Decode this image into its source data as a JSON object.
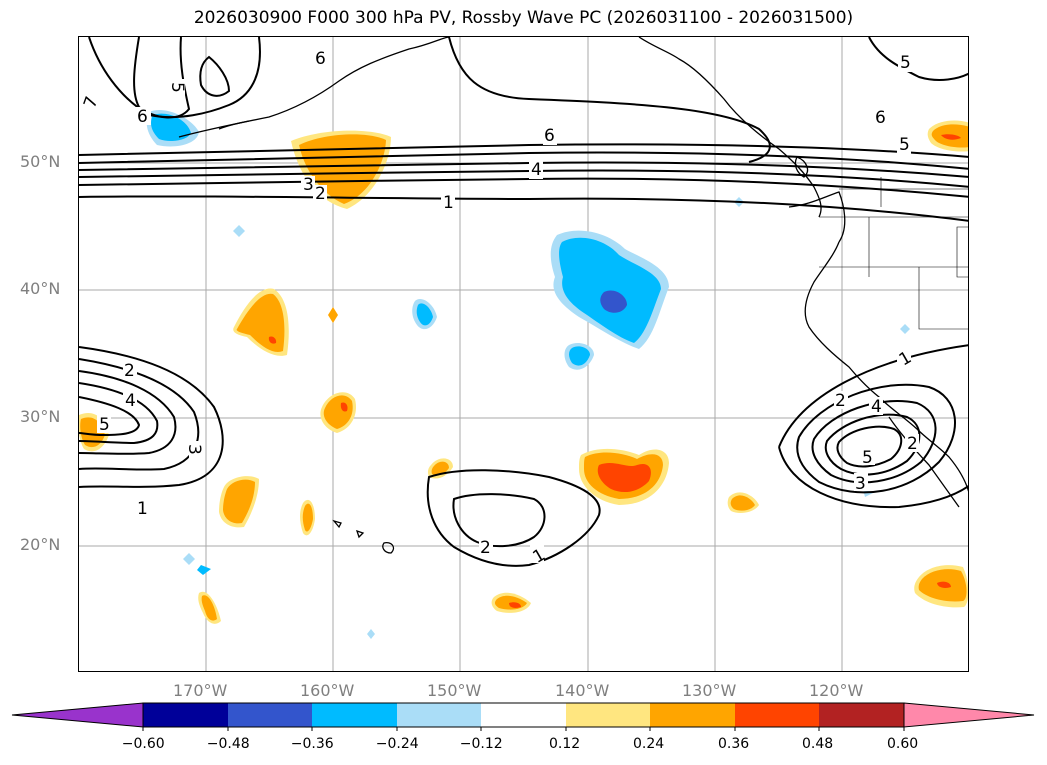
{
  "title": "2026030900 F000 300 hPa PV, Rossby Wave PC (2026031100 - 2026031500)",
  "map": {
    "lat_labels": [
      "50°N",
      "40°N",
      "30°N",
      "20°N"
    ],
    "lon_labels": [
      "170°W",
      "160°W",
      "150°W",
      "140°W",
      "130°W",
      "120°W"
    ]
  },
  "contour_labels": {
    "upper": [
      "7",
      "5",
      "6",
      "6",
      "6",
      "4",
      "3",
      "2",
      "1",
      "5",
      "6",
      "5"
    ],
    "left": [
      "2",
      "4",
      "5",
      "3",
      "1"
    ],
    "center": [
      "2",
      "1"
    ],
    "right": [
      "1",
      "2",
      "4",
      "5",
      "2",
      "3"
    ]
  },
  "colorbar": {
    "ticks": [
      "−0.60",
      "−0.48",
      "−0.36",
      "−0.24",
      "−0.12",
      "0.12",
      "0.24",
      "0.36",
      "0.48",
      "0.60"
    ],
    "colors": [
      "#9933cc",
      "#000099",
      "#3355cc",
      "#00bbff",
      "#aaddf7",
      "#ffffff",
      "#ffe680",
      "#ffa500",
      "#ff4400",
      "#b22222",
      "#ff88aa"
    ]
  }
}
